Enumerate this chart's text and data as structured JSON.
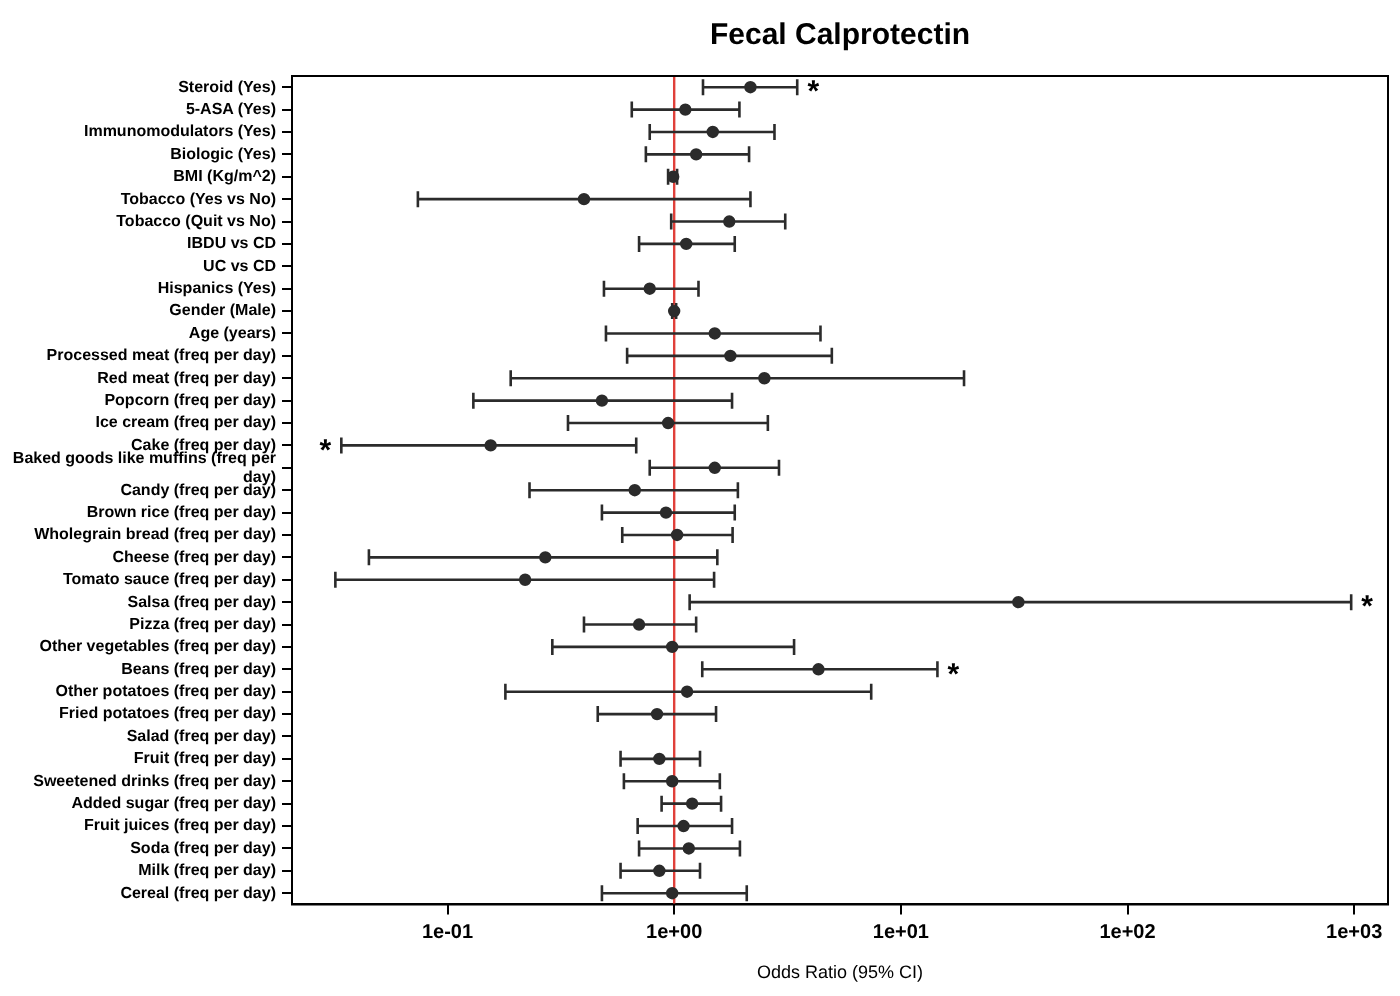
{
  "chart_data": {
    "type": "scatter",
    "orientation": "horizontal",
    "title": "Fecal Calprotectin",
    "xlabel": "Odds Ratio (95% CI)",
    "categories": [
      "Steroid (Yes)",
      "5-ASA (Yes)",
      "Immunomodulators (Yes)",
      "Biologic (Yes)",
      "BMI (Kg/m^2)",
      "Tobacco (Yes vs No)",
      "Tobacco (Quit vs No)",
      "IBDU vs CD",
      "UC vs CD",
      "Hispanics (Yes)",
      "Gender (Male)",
      "Age (years)",
      "Processed meat (freq per day)",
      "Red meat (freq per day)",
      "Popcorn (freq per day)",
      "Ice cream (freq per day)",
      "Cake (freq per day)",
      "Baked goods like muffins (freq per day)",
      "Candy (freq per day)",
      "Brown rice (freq per day)",
      "Wholegrain bread (freq per day)",
      "Cheese (freq per day)",
      "Tomato sauce (freq per day)",
      "Salsa (freq per day)",
      "Pizza (freq per day)",
      "Other vegetables (freq per day)",
      "Beans (freq per day)",
      "Other potatoes (freq per day)",
      "Fried potatoes (freq per day)",
      "Salad (freq per day)",
      "Fruit (freq per day)",
      "Sweetened drinks (freq per day)",
      "Added sugar (freq per day)",
      "Fruit juices (freq per day)",
      "Soda (freq per day)",
      "Milk (freq per day)",
      "Cereal (freq per day)"
    ],
    "values": [
      2.17,
      1.12,
      1.48,
      1.25,
      0.99,
      0.4,
      1.75,
      1.13,
      null,
      0.78,
      1.0,
      1.51,
      1.77,
      2.5,
      0.48,
      0.94,
      0.155,
      1.51,
      0.67,
      0.92,
      1.03,
      0.27,
      0.22,
      33,
      0.7,
      0.98,
      4.33,
      1.14,
      0.84,
      null,
      0.86,
      0.98,
      1.2,
      1.1,
      1.16,
      0.86,
      0.98
    ],
    "errors": [
      [
        1.34,
        3.49
      ],
      [
        0.65,
        1.94
      ],
      [
        0.78,
        2.77
      ],
      [
        0.75,
        2.14
      ],
      [
        0.94,
        1.03
      ],
      [
        0.074,
        2.17
      ],
      [
        0.97,
        3.09
      ],
      [
        0.7,
        1.85
      ],
      null,
      [
        0.49,
        1.28
      ],
      [
        0.98,
        1.02
      ],
      [
        0.5,
        4.42
      ],
      [
        0.62,
        4.96
      ],
      [
        0.19,
        19
      ],
      [
        0.13,
        1.8
      ],
      [
        0.34,
        2.59
      ],
      [
        0.034,
        0.68
      ],
      [
        0.78,
        2.9
      ],
      [
        0.23,
        1.91
      ],
      [
        0.48,
        1.85
      ],
      [
        0.59,
        1.81
      ],
      [
        0.045,
        1.55
      ],
      [
        0.032,
        1.5
      ],
      [
        1.17,
        970
      ],
      [
        0.4,
        1.25
      ],
      [
        0.29,
        3.38
      ],
      [
        1.33,
        14.5
      ],
      [
        0.18,
        7.4
      ],
      [
        0.46,
        1.53
      ],
      null,
      [
        0.58,
        1.3
      ],
      [
        0.6,
        1.59
      ],
      [
        0.88,
        1.61
      ],
      [
        0.69,
        1.8
      ],
      [
        0.7,
        1.95
      ],
      [
        0.58,
        1.3
      ],
      [
        0.48,
        2.09
      ]
    ],
    "color": "#2b2b2b",
    "marker": "circle",
    "log": "x",
    "grid": false,
    "xlim": [
      0.0206,
      1410
    ],
    "xticks": [
      {
        "value": 0.1,
        "label": "1e-01"
      },
      {
        "value": 1,
        "label": "1e+00"
      },
      {
        "value": 10,
        "label": "1e+01"
      },
      {
        "value": 100,
        "label": "1e+02"
      },
      {
        "value": 1000,
        "label": "1e+03"
      }
    ],
    "ref_lines": [
      {
        "axis": "x",
        "value": 1,
        "color": "#e0403a"
      }
    ],
    "annotations": [
      {
        "text": "*",
        "x": 3.49,
        "y": "Steroid (Yes)"
      },
      {
        "text": "*",
        "x": 0.034,
        "y": "Cake (freq per day)"
      },
      {
        "text": "*",
        "x": 970,
        "y": "Salsa (freq per day)"
      },
      {
        "text": "*",
        "x": 14.5,
        "y": "Beans (freq per day)"
      }
    ]
  }
}
